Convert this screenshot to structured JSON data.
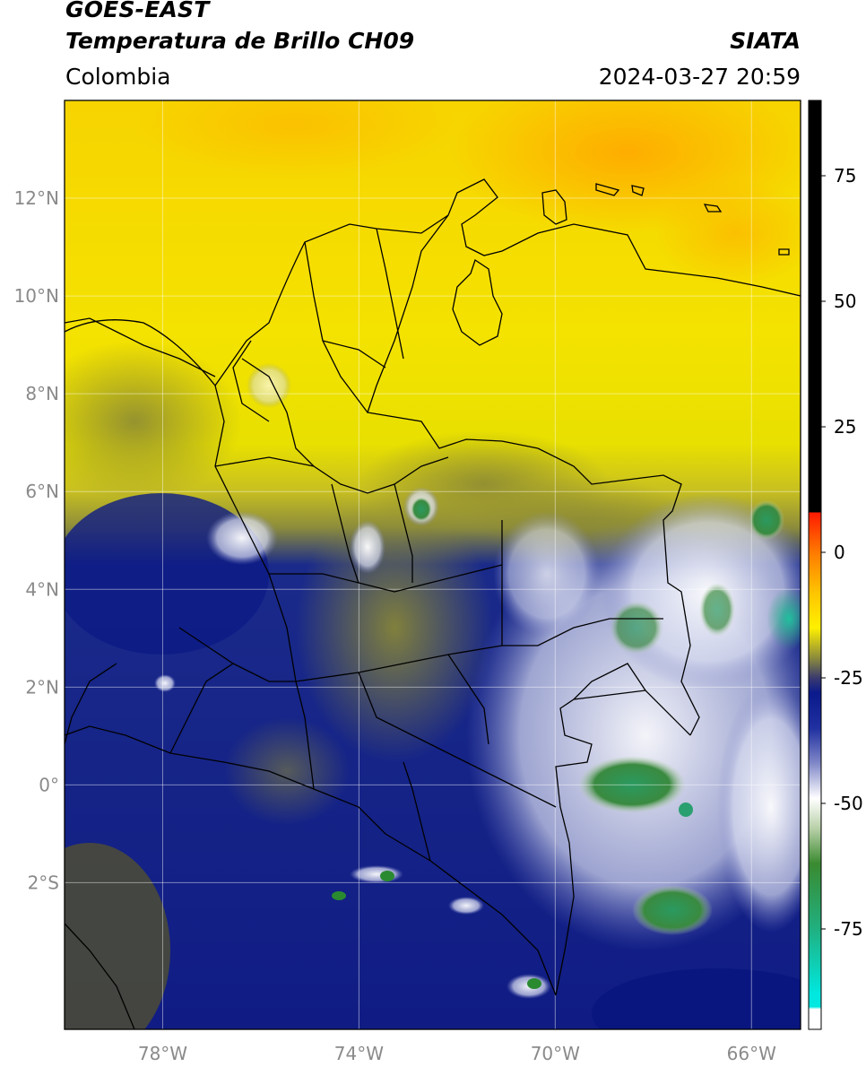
{
  "header": {
    "satellite": "GOES-EAST",
    "product": "Temperatura de Brillo CH09",
    "region": "Colombia",
    "source": "SIATA",
    "datetime": "2024-03-27 20:59"
  },
  "map": {
    "lon_range": [
      -80,
      -65
    ],
    "lat_range": [
      -5,
      14
    ],
    "lat_labels": [
      "12°N",
      "10°N",
      "8°N",
      "6°N",
      "4°N",
      "2°N",
      "0°",
      "2°S"
    ],
    "lat_values": [
      12,
      10,
      8,
      6,
      4,
      2,
      0,
      -2
    ],
    "lon_labels": [
      "78°W",
      "74°W",
      "70°W",
      "66°W"
    ],
    "lon_values": [
      -78,
      -74,
      -70,
      -66
    ]
  },
  "colorbar": {
    "range": [
      -95,
      90
    ],
    "tick_values": [
      75,
      50,
      25,
      0,
      -25,
      -50,
      -75
    ],
    "tick_labels": [
      "75",
      "50",
      "25",
      "0",
      "-25",
      "-50",
      "-75"
    ],
    "stops": [
      {
        "v": 90,
        "c": "#000000"
      },
      {
        "v": 8,
        "c": "#000000"
      },
      {
        "v": 7.9,
        "c": "#ff1a00"
      },
      {
        "v": 0,
        "c": "#ff7a00"
      },
      {
        "v": -8,
        "c": "#ffc400"
      },
      {
        "v": -15,
        "c": "#fff000"
      },
      {
        "v": -21,
        "c": "#8c8c3c"
      },
      {
        "v": -25,
        "c": "#3a3a6e"
      },
      {
        "v": -28,
        "c": "#0a1a8c"
      },
      {
        "v": -35,
        "c": "#2030a0"
      },
      {
        "v": -42,
        "c": "#8088c8"
      },
      {
        "v": -49,
        "c": "#ffffff"
      },
      {
        "v": -55,
        "c": "#b8d0a8"
      },
      {
        "v": -62,
        "c": "#3a8a30"
      },
      {
        "v": -75,
        "c": "#20b080"
      },
      {
        "v": -88,
        "c": "#00e8e0"
      },
      {
        "v": -90.5,
        "c": "#00e8e0"
      },
      {
        "v": -91,
        "c": "#ffffff"
      },
      {
        "v": -95,
        "c": "#ffffff"
      }
    ]
  }
}
